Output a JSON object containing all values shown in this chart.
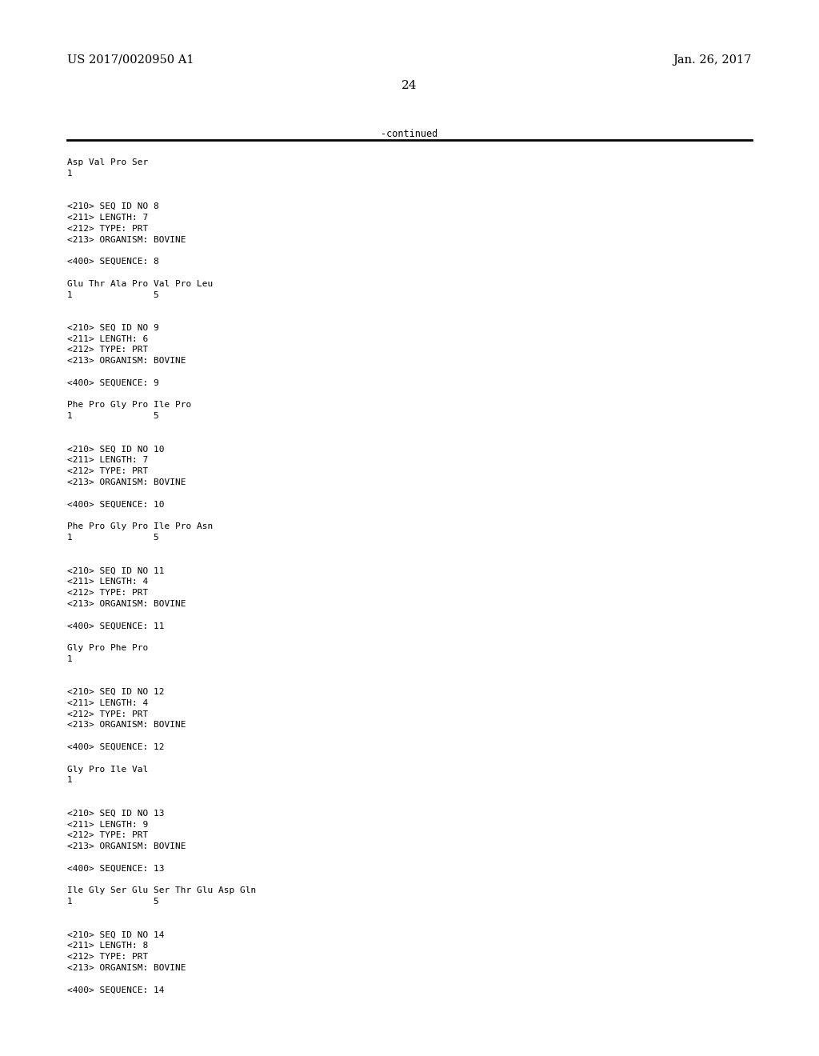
{
  "background_color": "#ffffff",
  "top_left_text": "US 2017/0020950 A1",
  "top_right_text": "Jan. 26, 2017",
  "page_number": "24",
  "continued_text": "-continued",
  "mono_font_size": 8.0,
  "header_font_size": 10.5,
  "page_num_font_size": 11,
  "content": [
    "Asp Val Pro Ser",
    "1",
    "",
    "",
    "<210> SEQ ID NO 8",
    "<211> LENGTH: 7",
    "<212> TYPE: PRT",
    "<213> ORGANISM: BOVINE",
    "",
    "<400> SEQUENCE: 8",
    "",
    "Glu Thr Ala Pro Val Pro Leu",
    "1               5",
    "",
    "",
    "<210> SEQ ID NO 9",
    "<211> LENGTH: 6",
    "<212> TYPE: PRT",
    "<213> ORGANISM: BOVINE",
    "",
    "<400> SEQUENCE: 9",
    "",
    "Phe Pro Gly Pro Ile Pro",
    "1               5",
    "",
    "",
    "<210> SEQ ID NO 10",
    "<211> LENGTH: 7",
    "<212> TYPE: PRT",
    "<213> ORGANISM: BOVINE",
    "",
    "<400> SEQUENCE: 10",
    "",
    "Phe Pro Gly Pro Ile Pro Asn",
    "1               5",
    "",
    "",
    "<210> SEQ ID NO 11",
    "<211> LENGTH: 4",
    "<212> TYPE: PRT",
    "<213> ORGANISM: BOVINE",
    "",
    "<400> SEQUENCE: 11",
    "",
    "Gly Pro Phe Pro",
    "1",
    "",
    "",
    "<210> SEQ ID NO 12",
    "<211> LENGTH: 4",
    "<212> TYPE: PRT",
    "<213> ORGANISM: BOVINE",
    "",
    "<400> SEQUENCE: 12",
    "",
    "Gly Pro Ile Val",
    "1",
    "",
    "",
    "<210> SEQ ID NO 13",
    "<211> LENGTH: 9",
    "<212> TYPE: PRT",
    "<213> ORGANISM: BOVINE",
    "",
    "<400> SEQUENCE: 13",
    "",
    "Ile Gly Ser Glu Ser Thr Glu Asp Gln",
    "1               5",
    "",
    "",
    "<210> SEQ ID NO 14",
    "<211> LENGTH: 8",
    "<212> TYPE: PRT",
    "<213> ORGANISM: BOVINE",
    "",
    "<400> SEQUENCE: 14"
  ]
}
